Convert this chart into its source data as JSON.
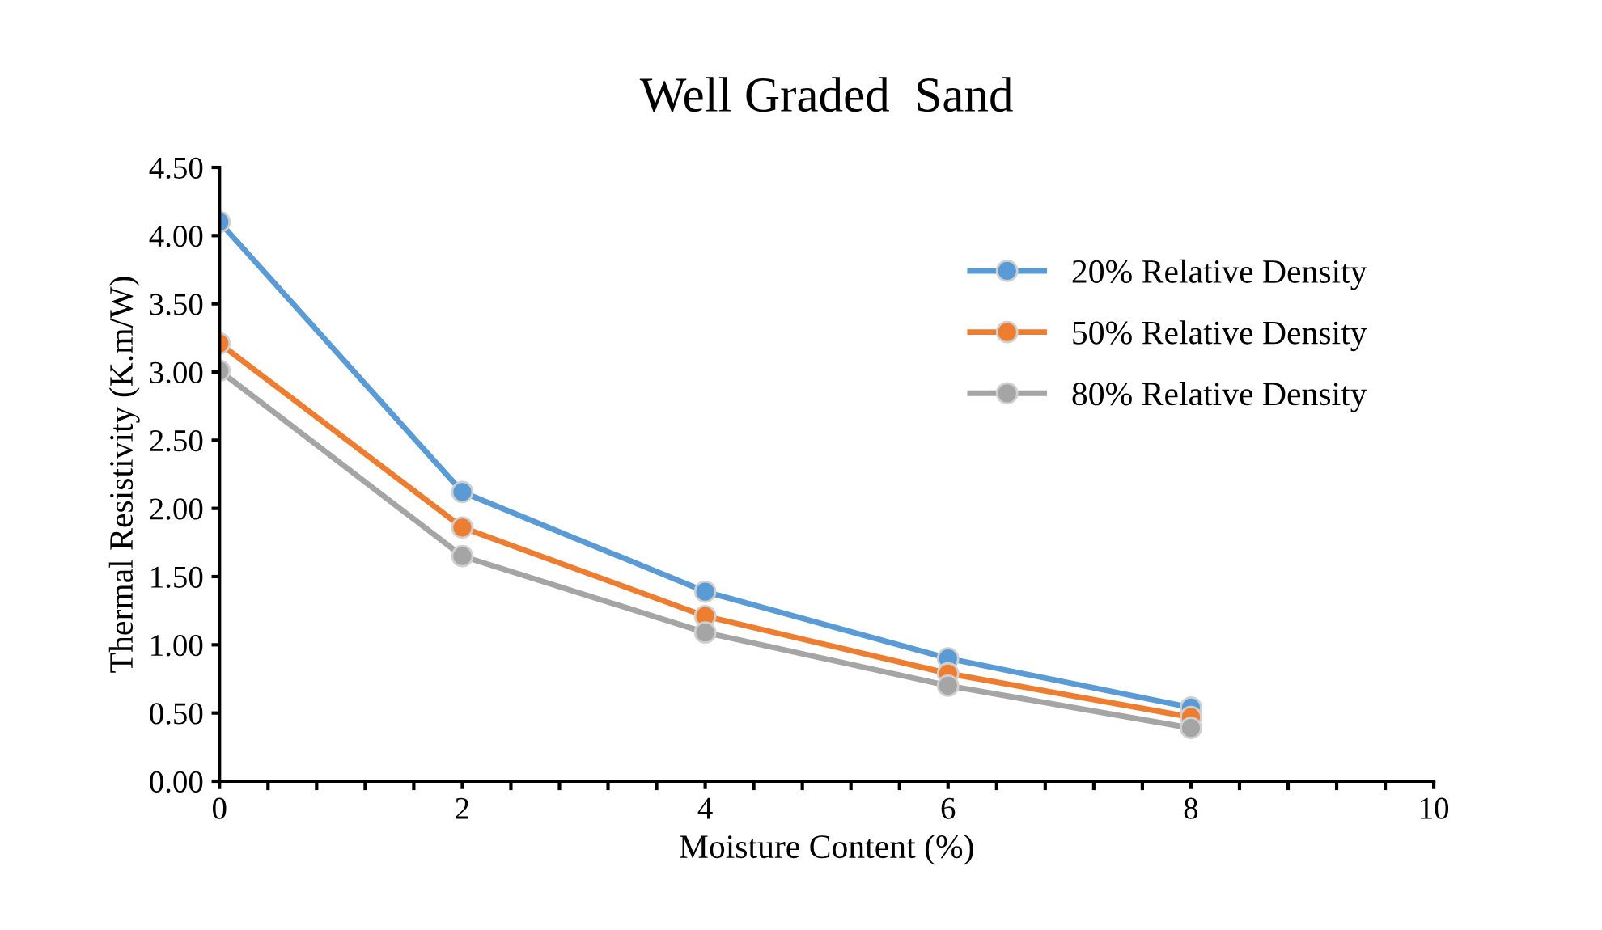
{
  "chart_data": {
    "type": "line",
    "title": "Well Graded  Sand",
    "xlabel": "Moisture Content (%)",
    "ylabel": "Thermal Resistivity (K.m/W)",
    "x": [
      0,
      2,
      4,
      6,
      8
    ],
    "series": [
      {
        "name": "20% Relative Density",
        "color": "#5b9bd5",
        "values": [
          4.1,
          2.12,
          1.39,
          0.9,
          0.54
        ]
      },
      {
        "name": "50% Relative Density",
        "color": "#ed7d31",
        "values": [
          3.21,
          1.86,
          1.21,
          0.79,
          0.47
        ]
      },
      {
        "name": "80% Relative Density",
        "color": "#a5a5a5",
        "values": [
          3.01,
          1.65,
          1.09,
          0.7,
          0.39
        ]
      }
    ],
    "xlim": [
      0,
      10
    ],
    "xticks": [
      0,
      2,
      4,
      6,
      8,
      10
    ],
    "ylim": [
      0,
      4.5
    ],
    "yticks": [
      {
        "value": 0,
        "label": "0.00"
      },
      {
        "value": 0.5,
        "label": "0.50"
      },
      {
        "value": 1,
        "label": "1.00"
      },
      {
        "value": 1.5,
        "label": "1.50"
      },
      {
        "value": 2,
        "label": "2.00"
      },
      {
        "value": 2.5,
        "label": "2.50"
      },
      {
        "value": 3,
        "label": "3.00"
      },
      {
        "value": 3.5,
        "label": "3.50"
      },
      {
        "value": 4,
        "label": "4.00"
      },
      {
        "value": 4.5,
        "label": "4.50"
      }
    ],
    "grid": false,
    "legend": "top right",
    "marker": "circle",
    "line_style": "solid"
  }
}
